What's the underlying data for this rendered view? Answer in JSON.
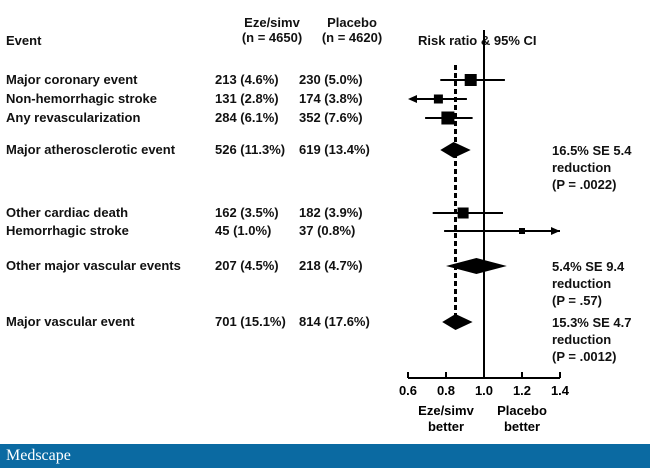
{
  "headers": {
    "event": "Event",
    "col1": "Eze/simv\n(n = 4650)",
    "col1a": "Eze/simv",
    "col1b": "(n = 4650)",
    "col2a": "Placebo",
    "col2b": "(n = 4620)",
    "plot": "Risk ratio & 95% CI"
  },
  "chart_data": {
    "type": "forest",
    "xlabel_left": "Eze/simv\nbetter",
    "xlabel_left_lines": [
      "Eze/simv",
      "better"
    ],
    "xlabel_right_lines": [
      "Placebo",
      "better"
    ],
    "xlim": [
      0.6,
      1.4
    ],
    "ticks": [
      "0.6",
      "0.8",
      "1.0",
      "1.2",
      "1.4"
    ],
    "reference_line": 1.0,
    "overall_dashed_line": 0.85,
    "rows": [
      {
        "event": "Major coronary event",
        "eze": "213 (4.6%)",
        "placebo": "230 (5.0%)",
        "rr": 0.93,
        "lo": 0.77,
        "hi": 1.11,
        "mark": "square"
      },
      {
        "event": "Non-hemorrhagic stroke",
        "eze": "131 (2.8%)",
        "placebo": "174 (3.8%)",
        "rr": 0.76,
        "lo": 0.6,
        "hi": 0.91,
        "mark": "square",
        "arrow_left": true
      },
      {
        "event": "Any revascularization",
        "eze": "284 (6.1%)",
        "placebo": "352 (7.6%)",
        "rr": 0.81,
        "lo": 0.69,
        "hi": 0.94,
        "mark": "square"
      },
      {
        "event": "Major atherosclerotic event",
        "eze": "526 (11.3%)",
        "placebo": "619 (13.4%)",
        "rr": 0.84,
        "lo": 0.77,
        "hi": 0.93,
        "mark": "diamond",
        "note": [
          "16.5% SE 5.4",
          "reduction",
          "(P = .0022)"
        ]
      },
      {
        "event": "Other cardiac death",
        "eze": "162 (3.5%)",
        "placebo": "182 (3.9%)",
        "rr": 0.89,
        "lo": 0.73,
        "hi": 1.1,
        "mark": "square"
      },
      {
        "event": "Hemorrhagic stroke",
        "eze": "45 (1.0%)",
        "placebo": "37  (0.8%)",
        "rr": 1.2,
        "lo": 0.79,
        "hi": 1.4,
        "mark": "square-small",
        "arrow_right": true
      },
      {
        "event": "Other major vascular events",
        "eze": "207 (4.5%)",
        "placebo": "218 (4.7%)",
        "rr": 0.96,
        "lo": 0.8,
        "hi": 1.12,
        "mark": "diamond",
        "note": [
          "5.4% SE 9.4",
          "reduction",
          "(P = .57)"
        ]
      },
      {
        "event": "Major vascular event",
        "eze": "701 (15.1%)",
        "placebo": "814 (17.6%)",
        "rr": 0.85,
        "lo": 0.78,
        "hi": 0.94,
        "mark": "diamond",
        "note": [
          "15.3% SE 4.7",
          "reduction",
          "(P = .0012)"
        ]
      }
    ]
  },
  "footer": {
    "logo": "Medscape",
    "color": "#0b6aa2"
  }
}
